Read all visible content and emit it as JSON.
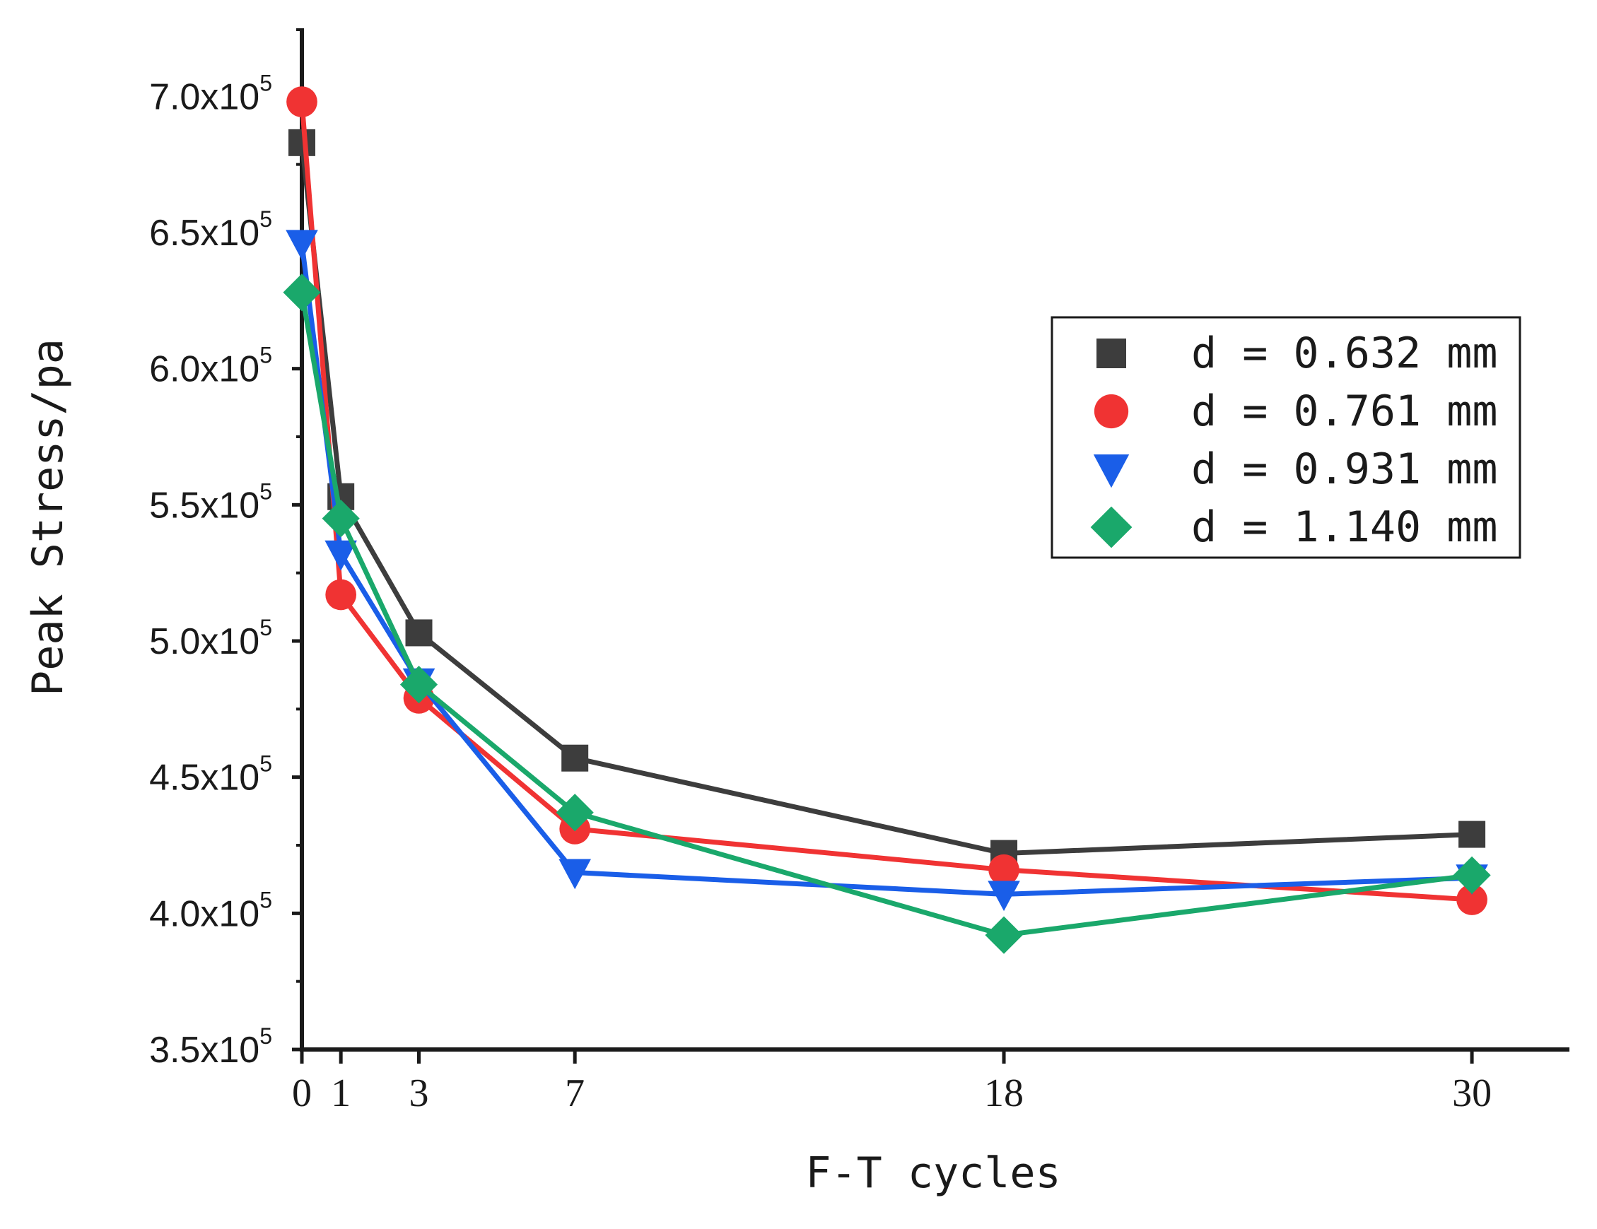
{
  "chart_data": {
    "type": "line",
    "title": "",
    "xlabel": "F-T cycles",
    "ylabel": "Peak Stress/pa",
    "x": [
      0,
      1,
      3,
      7,
      18,
      30
    ],
    "x_tick_labels": [
      "0",
      "1",
      "3",
      "7",
      "18",
      "30"
    ],
    "xlim": [
      0,
      32.5
    ],
    "ylim": [
      350000,
      725000
    ],
    "y_tick_values": [
      350000,
      400000,
      450000,
      500000,
      550000,
      600000,
      650000,
      700000
    ],
    "y_tick_labels": [
      {
        "mantissa": "3.5x10",
        "exp": "5"
      },
      {
        "mantissa": "4.0x10",
        "exp": "5"
      },
      {
        "mantissa": "4.5x10",
        "exp": "5"
      },
      {
        "mantissa": "5.0x10",
        "exp": "5"
      },
      {
        "mantissa": "5.5x10",
        "exp": "5"
      },
      {
        "mantissa": "6.0x10",
        "exp": "5"
      },
      {
        "mantissa": "6.5x10",
        "exp": "5"
      },
      {
        "mantissa": "7.0x10",
        "exp": "5"
      }
    ],
    "legend_position": "right",
    "series": [
      {
        "name": "d = 0.632 mm",
        "marker": "square",
        "color": "#3d3d3d",
        "values": [
          683000,
          553000,
          503000,
          457000,
          422000,
          429000
        ]
      },
      {
        "name": "d = 0.761 mm",
        "marker": "circle",
        "color": "#f03333",
        "values": [
          698000,
          517000,
          479000,
          431000,
          416000,
          405000
        ]
      },
      {
        "name": "d = 0.931 mm",
        "marker": "triangle-down",
        "color": "#1a5ee8",
        "values": [
          646000,
          532000,
          485000,
          415000,
          407000,
          413000
        ]
      },
      {
        "name": "d = 1.140 mm",
        "marker": "diamond",
        "color": "#1aa86b",
        "values": [
          628000,
          545000,
          484000,
          437000,
          392000,
          414000
        ]
      }
    ]
  }
}
